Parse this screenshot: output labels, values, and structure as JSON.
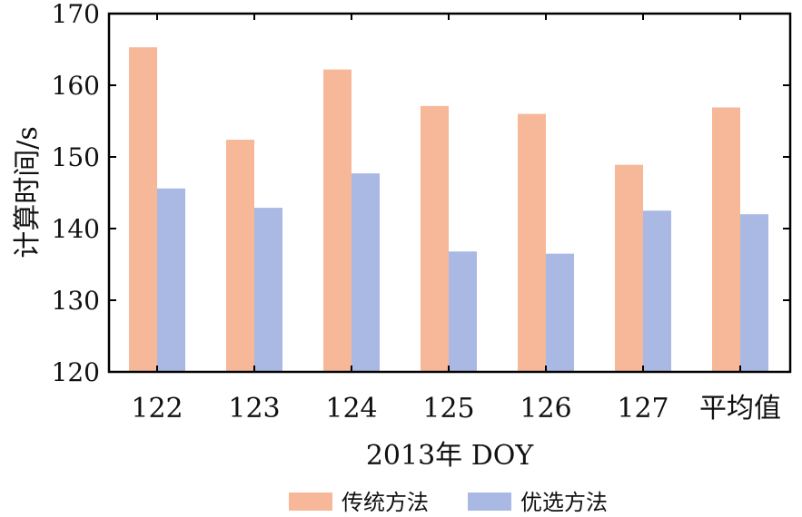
{
  "chart_data": {
    "type": "bar",
    "title": "",
    "xlabel": "2013年 DOY",
    "ylabel": "计算时间/s",
    "ylim": [
      120,
      170
    ],
    "yticks": [
      120,
      130,
      140,
      150,
      160,
      170
    ],
    "categories": [
      "122",
      "123",
      "124",
      "125",
      "126",
      "127",
      "平均值"
    ],
    "series": [
      {
        "name": "传统方法",
        "color": "#f7b799",
        "values": [
          165.3,
          152.4,
          162.2,
          157.1,
          156.0,
          148.9,
          156.9
        ]
      },
      {
        "name": "优选方法",
        "color": "#a9b9e4",
        "values": [
          145.6,
          142.9,
          147.7,
          136.8,
          136.5,
          142.5,
          142.0
        ]
      }
    ],
    "grid": false,
    "legend_position": "bottom"
  }
}
